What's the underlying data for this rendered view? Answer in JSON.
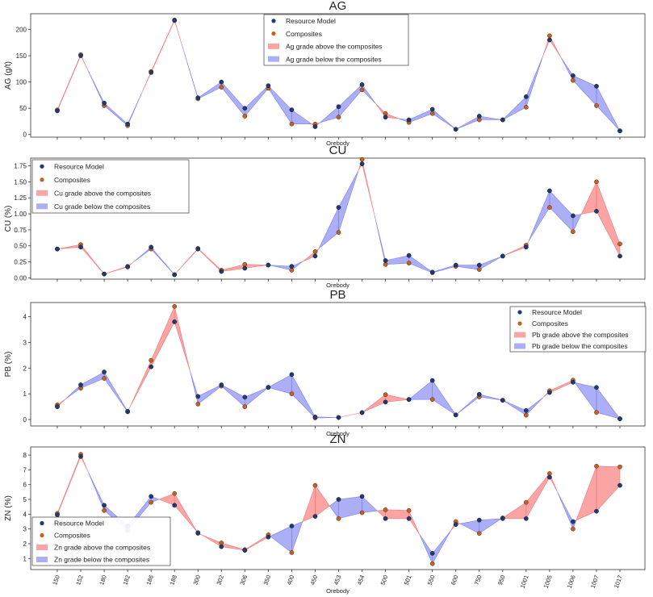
{
  "chart_data": [
    {
      "type": "line",
      "key": "ag",
      "title": "AG",
      "xlabel": "Orebody",
      "ylabel": "AG (g/t)",
      "ylim": [
        -5,
        230
      ],
      "yticks": [
        0,
        50,
        100,
        150,
        200
      ],
      "ytick_labels": [
        "0",
        "50",
        "100",
        "150",
        "200"
      ],
      "legend_position": "top-center",
      "categories": [
        "150",
        "152",
        "180",
        "182",
        "186",
        "188",
        "300",
        "302",
        "306",
        "350",
        "400",
        "450",
        "453",
        "454",
        "500",
        "501",
        "550",
        "600",
        "750",
        "950",
        "1001",
        "1005",
        "1006",
        "1007",
        "1017"
      ],
      "series": [
        {
          "name": "Resource Model",
          "values": [
            45,
            150,
            60,
            20,
            118,
            217,
            70,
            100,
            50,
            93,
            47,
            15,
            53,
            95,
            33,
            28,
            48,
            10,
            35,
            28,
            72,
            180,
            112,
            92,
            7
          ]
        },
        {
          "name": "Composites",
          "values": [
            47,
            152,
            55,
            17,
            120,
            218,
            68,
            90,
            35,
            88,
            20,
            20,
            33,
            85,
            40,
            23,
            40,
            10,
            28,
            28,
            52,
            188,
            103,
            55,
            7
          ]
        }
      ],
      "legend": [
        "Resource Model",
        "Composites",
        "Ag grade above the composites",
        "Ag grade below the composites"
      ]
    },
    {
      "type": "line",
      "key": "cu",
      "title": "CU",
      "xlabel": "Orebody",
      "ylabel": "CU (%)",
      "ylim": [
        -0.02,
        1.87
      ],
      "yticks": [
        0,
        0.25,
        0.5,
        0.75,
        1.0,
        1.25,
        1.5,
        1.75
      ],
      "ytick_labels": [
        "0.00",
        "0.25",
        "0.50",
        "0.75",
        "1.00",
        "1.25",
        "1.50",
        "1.75"
      ],
      "legend_position": "top-left",
      "categories": [
        "150",
        "152",
        "180",
        "182",
        "186",
        "188",
        "300",
        "302",
        "306",
        "350",
        "400",
        "450",
        "453",
        "454",
        "500",
        "501",
        "550",
        "600",
        "750",
        "950",
        "1001",
        "1005",
        "1006",
        "1007",
        "1017"
      ],
      "series": [
        {
          "name": "Resource Model",
          "values": [
            0.45,
            0.48,
            0.06,
            0.17,
            0.48,
            0.05,
            0.45,
            0.1,
            0.15,
            0.2,
            0.18,
            0.34,
            1.1,
            1.78,
            0.27,
            0.35,
            0.09,
            0.2,
            0.2,
            0.34,
            0.48,
            1.36,
            0.97,
            1.04,
            0.34
          ]
        },
        {
          "name": "Composites",
          "values": [
            0.45,
            0.52,
            0.06,
            0.18,
            0.45,
            0.05,
            0.46,
            0.12,
            0.21,
            0.2,
            0.12,
            0.41,
            0.71,
            1.85,
            0.21,
            0.23,
            0.08,
            0.18,
            0.13,
            0.34,
            0.51,
            1.1,
            0.72,
            1.5,
            0.53
          ]
        }
      ],
      "legend": [
        "Resource Model",
        "Composites",
        "Cu grade above the composites",
        "Cu grade below the composites"
      ]
    },
    {
      "type": "line",
      "key": "pb",
      "title": "PB",
      "xlabel": "Orebody",
      "ylabel": "PB (%)",
      "ylim": [
        -0.25,
        4.55
      ],
      "yticks": [
        0,
        1,
        2,
        3,
        4
      ],
      "ytick_labels": [
        "0",
        "1",
        "2",
        "3",
        "4"
      ],
      "legend_position": "top-right",
      "categories": [
        "150",
        "152",
        "180",
        "182",
        "186",
        "188",
        "300",
        "302",
        "306",
        "350",
        "400",
        "450",
        "453",
        "454",
        "500",
        "501",
        "550",
        "600",
        "750",
        "950",
        "1001",
        "1005",
        "1006",
        "1007",
        "1017"
      ],
      "series": [
        {
          "name": "Resource Model",
          "values": [
            0.5,
            1.35,
            1.85,
            0.32,
            2.05,
            3.8,
            0.9,
            1.35,
            0.87,
            1.25,
            1.75,
            0.1,
            0.08,
            0.27,
            0.68,
            0.78,
            1.52,
            0.18,
            0.98,
            0.75,
            0.35,
            1.05,
            1.45,
            1.25,
            0.03
          ]
        },
        {
          "name": "Composites",
          "values": [
            0.57,
            1.22,
            1.6,
            0.3,
            2.3,
            4.4,
            0.6,
            1.3,
            0.5,
            1.25,
            1.0,
            0.06,
            0.08,
            0.27,
            0.97,
            0.78,
            0.78,
            0.18,
            0.88,
            0.75,
            0.17,
            1.12,
            1.53,
            0.28,
            0.03
          ]
        }
      ],
      "legend": [
        "Resource Model",
        "Composites",
        "Pb grade above the composites",
        "Pb grade below the composites"
      ]
    },
    {
      "type": "line",
      "key": "zn",
      "title": "ZN",
      "xlabel": "Orebody",
      "ylabel": "ZN (%)",
      "ylim": [
        0.25,
        8.55
      ],
      "yticks": [
        1,
        2,
        3,
        4,
        5,
        6,
        7,
        8
      ],
      "ytick_labels": [
        "1",
        "2",
        "3",
        "4",
        "5",
        "6",
        "7",
        "8"
      ],
      "legend_position": "bottom-left",
      "categories": [
        "150",
        "152",
        "180",
        "182",
        "186",
        "188",
        "300",
        "302",
        "306",
        "350",
        "400",
        "450",
        "453",
        "454",
        "500",
        "501",
        "550",
        "600",
        "750",
        "950",
        "1001",
        "1005",
        "1006",
        "1007",
        "1017"
      ],
      "series": [
        {
          "name": "Resource Model",
          "values": [
            3.95,
            7.9,
            4.6,
            3.2,
            5.2,
            4.6,
            2.75,
            1.8,
            1.55,
            2.45,
            3.2,
            3.85,
            5.0,
            5.2,
            3.7,
            3.7,
            1.35,
            3.3,
            3.6,
            3.7,
            3.7,
            6.5,
            3.5,
            4.2,
            5.95
          ]
        },
        {
          "name": "Composites",
          "values": [
            4.05,
            8.05,
            4.25,
            2.9,
            4.8,
            5.4,
            2.7,
            2.05,
            1.6,
            2.6,
            1.4,
            5.95,
            3.7,
            4.1,
            4.3,
            4.25,
            0.65,
            3.5,
            2.7,
            3.75,
            4.8,
            6.75,
            3.0,
            7.25,
            7.2
          ]
        }
      ],
      "legend": [
        "Resource Model",
        "Composites",
        "Zn grade above the composites",
        "Zn grade below the composites"
      ]
    }
  ]
}
